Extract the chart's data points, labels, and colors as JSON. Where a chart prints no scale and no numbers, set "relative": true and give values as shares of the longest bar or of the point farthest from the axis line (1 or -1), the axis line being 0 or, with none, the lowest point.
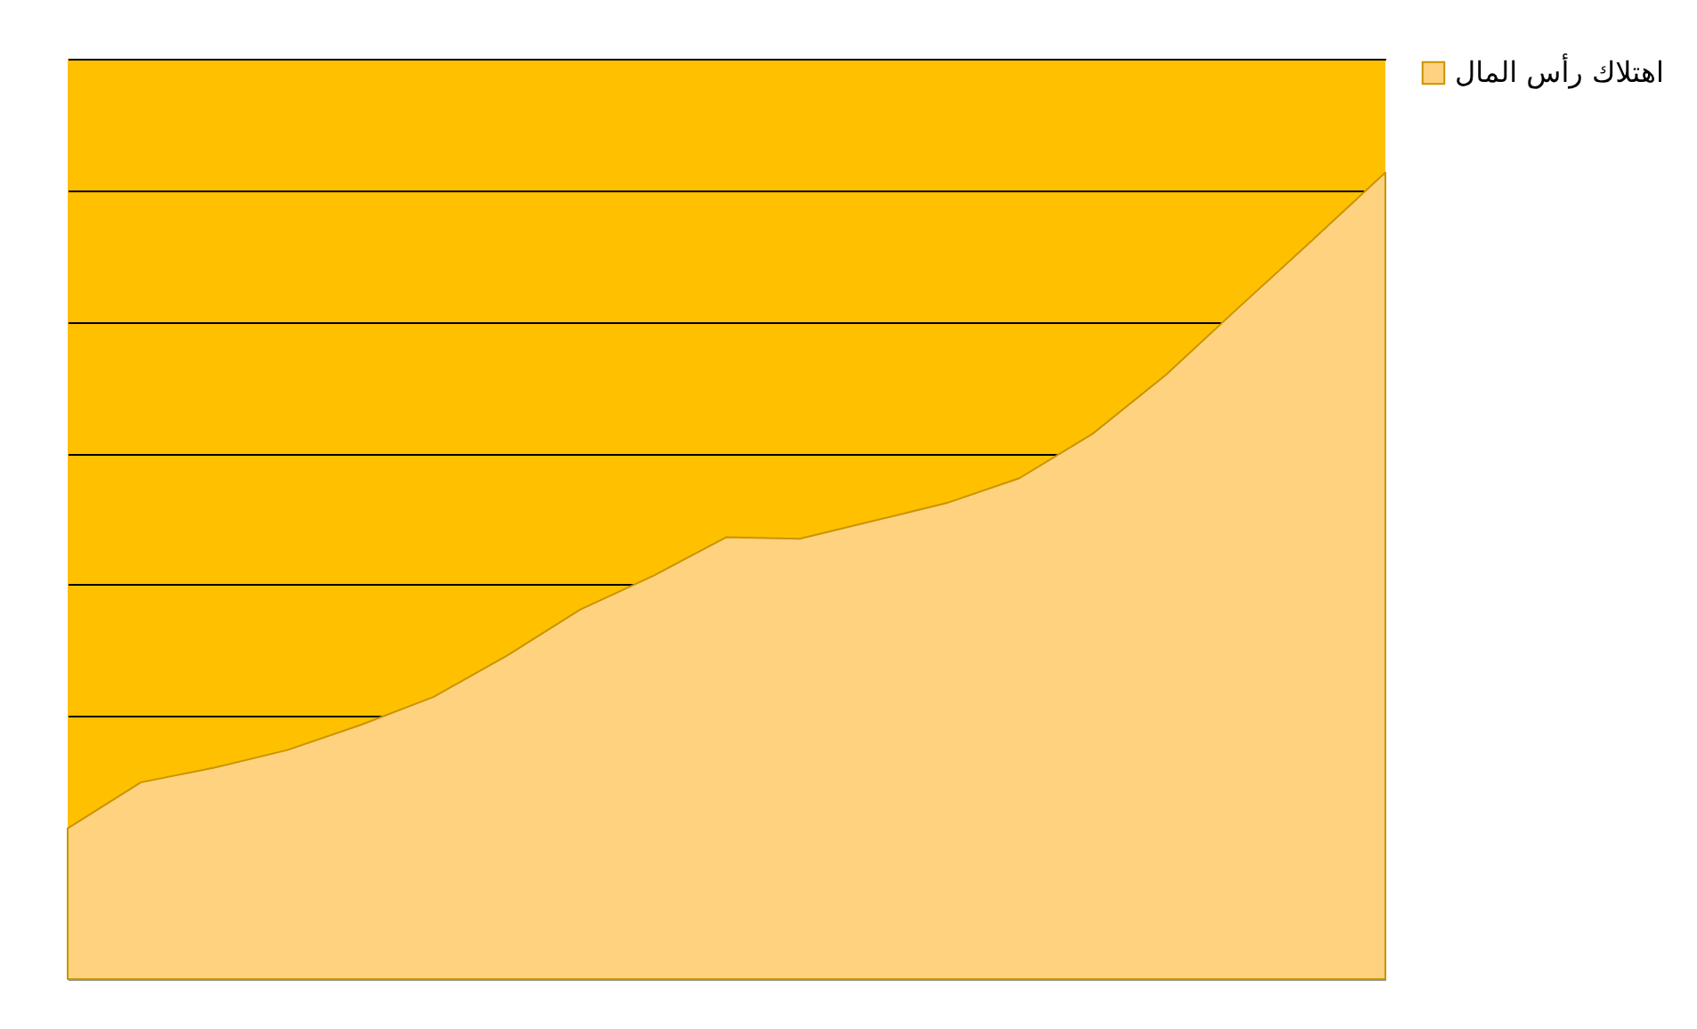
{
  "chart_data": {
    "type": "area",
    "relative": true,
    "grid": "y",
    "legend": "right",
    "categories": [
      null,
      null,
      null,
      null,
      null,
      null,
      null,
      null,
      null,
      null,
      null,
      null,
      null,
      null,
      null,
      null,
      null,
      null,
      null
    ],
    "series": [
      {
        "name": "اهتلاك رأس المال",
        "color": "#ffd27f",
        "values": [
          0.187,
          0.244,
          0.262,
          0.284,
          0.315,
          0.35,
          0.401,
          0.458,
          0.5,
          0.548,
          0.546,
          0.568,
          0.59,
          0.621,
          0.676,
          0.749,
          0.833,
          0.916,
          1
        ]
      }
    ]
  }
}
